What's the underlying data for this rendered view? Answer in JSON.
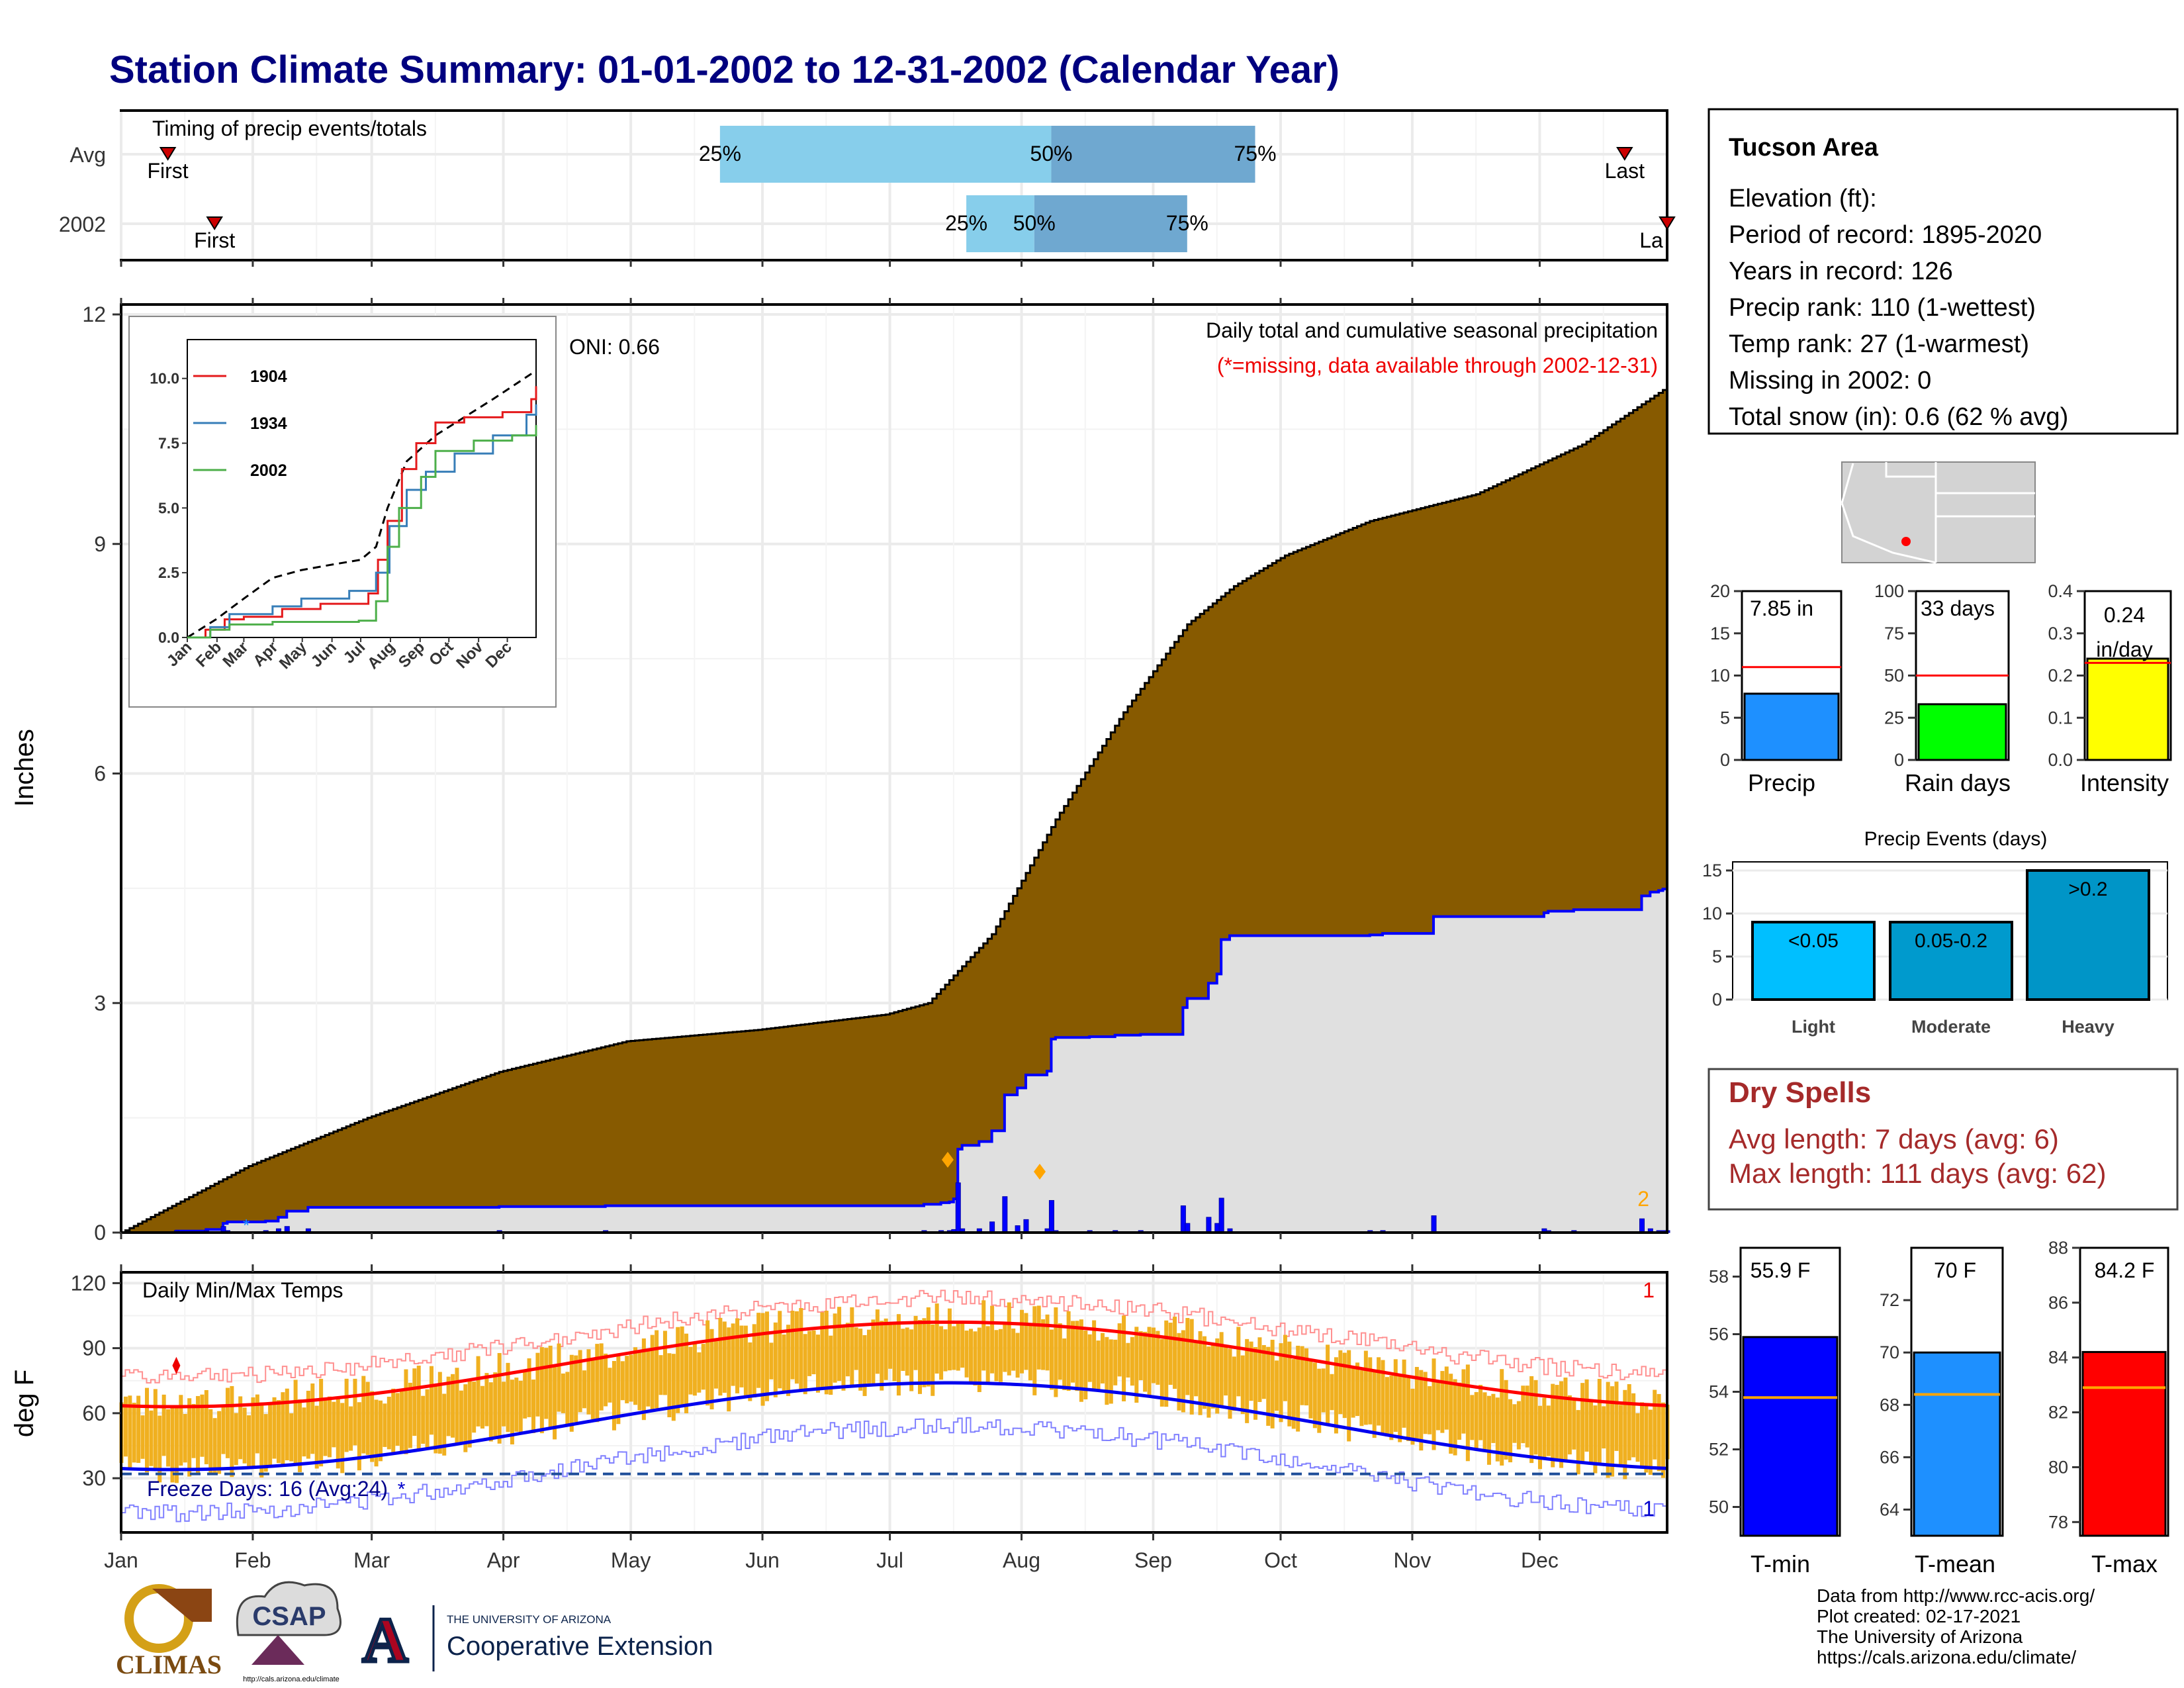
{
  "title": "Station Climate Summary: 01-01-2002 to 12-31-2002 (Calendar Year)",
  "timing": {
    "label": "Timing of precip events/totals",
    "rows": [
      {
        "name": "Avg",
        "first": "First",
        "last": "Last",
        "p25": "25%",
        "p50": "50%",
        "p75": "75%",
        "first_doy": 12,
        "p25_doy": 142,
        "p50_doy": 220,
        "p75_doy": 268,
        "last_doy": 355
      },
      {
        "name": "2002",
        "first": "First",
        "last": "La",
        "p25": "25%",
        "p50": "50%",
        "p75": "75%",
        "first_doy": 23,
        "p25_doy": 200,
        "p50_doy": 216,
        "p75_doy": 252,
        "last_doy": 365
      }
    ]
  },
  "main_chart": {
    "ylabel": "Inches",
    "caption1": "Daily total and cumulative seasonal precipitation",
    "caption2": "(*=missing, data available through 2002-12-31)",
    "oni": "ONI: 0.66",
    "missing_count": "2",
    "yticks": [
      "0",
      "3",
      "6",
      "9",
      "12"
    ],
    "avg_cumulative_knots": [
      [
        1,
        0
      ],
      [
        31,
        0.87
      ],
      [
        59,
        1.5
      ],
      [
        90,
        2.1
      ],
      [
        120,
        2.5
      ],
      [
        151,
        2.65
      ],
      [
        181,
        2.85
      ],
      [
        191,
        3.0
      ],
      [
        206,
        3.9
      ],
      [
        221,
        5.4
      ],
      [
        237,
        6.8
      ],
      [
        252,
        7.95
      ],
      [
        263,
        8.45
      ],
      [
        275,
        8.85
      ],
      [
        295,
        9.3
      ],
      [
        320,
        9.65
      ],
      [
        345,
        10.3
      ],
      [
        365,
        11.05
      ]
    ]
  },
  "inset": {
    "yticks": [
      "0.0",
      "2.5",
      "5.0",
      "7.5",
      "10.0"
    ],
    "months": [
      "Jan",
      "Feb",
      "Mar",
      "Apr",
      "May",
      "Jun",
      "Jul",
      "Aug",
      "Sep",
      "Oct",
      "Nov",
      "Dec"
    ],
    "series": [
      {
        "name": "1904",
        "color": "#e41a1c"
      },
      {
        "name": "1934",
        "color": "#377eb8"
      },
      {
        "name": "2002",
        "color": "#4daf4a"
      }
    ]
  },
  "temp_chart": {
    "ylabel": "deg F",
    "label": "Daily Min/Max Temps",
    "freeze": "Freeze Days: 16 (Avg:24)",
    "top_count": "1",
    "bottom_count": "1",
    "yticks": [
      "30",
      "60",
      "90",
      "120"
    ],
    "freeze_line": 32
  },
  "months": [
    "Jan",
    "Feb",
    "Mar",
    "Apr",
    "May",
    "Jun",
    "Jul",
    "Aug",
    "Sep",
    "Oct",
    "Nov",
    "Dec"
  ],
  "station": {
    "name": "Tucson Area",
    "lines": [
      "Elevation (ft):",
      "Period of record: 1895-2020",
      "Years in record: 126",
      "Precip rank: 110 (1-wettest)",
      "Temp rank: 27 (1-warmest)",
      "Missing in 2002: 0",
      "Total snow (in): 0.6 (62 % avg)"
    ]
  },
  "mini_bars": [
    {
      "label": "Precip",
      "value": 7.85,
      "avg": 11.0,
      "text1": "7.85 in",
      "text2": "",
      "max": 20,
      "color": "#1e90ff",
      "ticks": [
        "0",
        "5",
        "10",
        "15",
        "20"
      ]
    },
    {
      "label": "Rain days",
      "value": 33,
      "avg": 50,
      "text1": "33 days",
      "text2": "",
      "max": 100,
      "color": "#00ff00",
      "ticks": [
        "0",
        "25",
        "50",
        "75",
        "100"
      ]
    },
    {
      "label": "Intensity",
      "value": 0.24,
      "avg": 0.23,
      "text1": "0.24",
      "text2": "in/day",
      "max": 0.4,
      "color": "#ffff00",
      "ticks": [
        "0.0",
        "0.1",
        "0.2",
        "0.3",
        "0.4"
      ]
    }
  ],
  "precip_events": {
    "title": "Precip Events (days)",
    "categories": [
      "Light",
      "Moderate",
      "Heavy"
    ],
    "bar_labels": [
      "<0.05",
      "0.05-0.2",
      ">0.2"
    ],
    "values": [
      9,
      9,
      15
    ],
    "colors": [
      "#00bfff",
      "#009acd",
      "#0095c7"
    ],
    "yticks": [
      "0",
      "5",
      "10",
      "15"
    ]
  },
  "dry_spells": {
    "title": "Dry Spells",
    "avg": "Avg length: 7 days (avg: 6)",
    "max": "Max length: 111 days (avg: 62)"
  },
  "temp_bars": [
    {
      "label": "T-min",
      "value": 55.9,
      "avg": 53.8,
      "text": "55.9 F",
      "min": 49,
      "max": 59,
      "color": "#0000ff",
      "ticks": [
        "50",
        "52",
        "54",
        "56",
        "58"
      ],
      "tickvals": [
        50,
        52,
        54,
        56,
        58
      ]
    },
    {
      "label": "T-mean",
      "value": 70,
      "avg": 68.4,
      "text": "70 F",
      "min": 63,
      "max": 74,
      "color": "#1e90ff",
      "ticks": [
        "64",
        "66",
        "68",
        "70",
        "72"
      ],
      "tickvals": [
        64,
        66,
        68,
        70,
        72
      ]
    },
    {
      "label": "T-max",
      "value": 84.2,
      "avg": 82.9,
      "text": "84.2 F",
      "min": 77.5,
      "max": 88,
      "color": "#ff0000",
      "ticks": [
        "78",
        "80",
        "82",
        "84",
        "86",
        "88"
      ],
      "tickvals": [
        78,
        80,
        82,
        84,
        86,
        88
      ]
    }
  ],
  "footer": [
    "Data from http://www.rcc-acis.org/",
    "Plot created: 02-17-2021",
    "The University of Arizona",
    "https://cals.arizona.edu/climate/"
  ],
  "logos": {
    "climas": "CLIMAS",
    "csap": "CSAP",
    "csap_url": "http://cals.arizona.edu/climate",
    "ua_small": "THE UNIVERSITY OF ARIZONA",
    "ua_big": "Cooperative Extension"
  }
}
